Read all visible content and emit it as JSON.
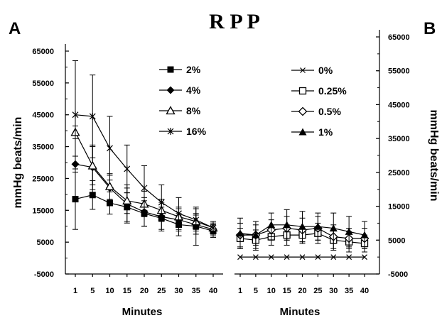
{
  "title": "R P P",
  "chart_data": [
    {
      "panel_label": "A",
      "type": "line",
      "xlabel": "Minutes",
      "ylabel": "mmHg beats/min",
      "x": [
        1,
        5,
        10,
        15,
        20,
        25,
        30,
        35,
        40
      ],
      "ylim": [
        -5000,
        65000
      ],
      "yticks": [
        -5000,
        5000,
        15000,
        25000,
        35000,
        45000,
        55000,
        65000
      ],
      "legend_position": "top-center",
      "series": [
        {
          "name": "2%",
          "marker": "filled-square",
          "values": [
            18500,
            19800,
            17300,
            16000,
            14000,
            12500,
            10500,
            10000,
            8500
          ],
          "error": [
            9500,
            4500,
            3500,
            4500,
            4000,
            3500,
            3500,
            6000,
            2000
          ]
        },
        {
          "name": "4%",
          "marker": "filled-diamond",
          "values": [
            29500,
            28500,
            22000,
            17000,
            14500,
            13000,
            12000,
            10500,
            9000
          ],
          "error": [
            2500,
            7000,
            4000,
            6000,
            4500,
            4500,
            3500,
            3000,
            2000
          ]
        },
        {
          "name": "8%",
          "marker": "open-triangle",
          "values": [
            39500,
            29000,
            22500,
            18000,
            17000,
            15000,
            13000,
            11500,
            9500
          ],
          "error": [
            2000,
            6000,
            4000,
            4000,
            4000,
            3500,
            3000,
            2500,
            2000
          ]
        },
        {
          "name": "16%",
          "marker": "asterisk",
          "values": [
            45000,
            44500,
            34500,
            28000,
            22000,
            17500,
            14000,
            12000,
            9500
          ],
          "error": [
            17000,
            13000,
            10000,
            7500,
            7000,
            5500,
            5000,
            3500,
            2000
          ]
        }
      ]
    },
    {
      "panel_label": "B",
      "type": "line",
      "xlabel": "Minutes",
      "ylabel": "mmHg beats/min",
      "x": [
        1,
        5,
        10,
        15,
        20,
        25,
        30,
        35,
        40
      ],
      "ylim": [
        -5000,
        65000
      ],
      "yticks": [
        -5000,
        5000,
        15000,
        25000,
        35000,
        45000,
        55000,
        65000
      ],
      "legend_position": "top-center",
      "series": [
        {
          "name": "0%",
          "marker": "x",
          "values": [
            0,
            0,
            0,
            0,
            0,
            0,
            0,
            0,
            0
          ],
          "error": [
            0,
            0,
            0,
            0,
            0,
            0,
            0,
            0,
            0
          ]
        },
        {
          "name": "0.25%",
          "marker": "open-square",
          "values": [
            5500,
            5000,
            6000,
            6500,
            6500,
            7000,
            5000,
            4500,
            4000
          ],
          "error": [
            3000,
            3000,
            2500,
            3000,
            2500,
            3000,
            3000,
            3000,
            2500
          ]
        },
        {
          "name": "0.5%",
          "marker": "open-diamond",
          "values": [
            6500,
            6500,
            8000,
            8500,
            8000,
            8500,
            6000,
            5500,
            5500
          ],
          "error": [
            3500,
            3000,
            3000,
            3500,
            3500,
            3500,
            3500,
            3000,
            3000
          ]
        },
        {
          "name": "1%",
          "marker": "filled-triangle",
          "values": [
            7000,
            6500,
            9500,
            9500,
            9000,
            9000,
            8500,
            7500,
            6500
          ],
          "error": [
            4500,
            4000,
            3500,
            4500,
            4500,
            4000,
            4500,
            4500,
            4000
          ]
        }
      ]
    }
  ]
}
